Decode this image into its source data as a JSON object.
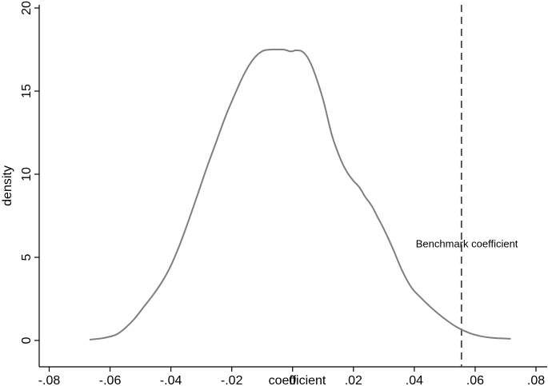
{
  "chart_data": {
    "type": "line",
    "title": "",
    "xlabel": "coefficient",
    "ylabel": "density",
    "xlim": [
      -0.08,
      0.08
    ],
    "ylim": [
      0,
      20
    ],
    "x_ticks": [
      -0.08,
      -0.06,
      -0.04,
      -0.02,
      0,
      0.02,
      0.04,
      0.06,
      0.08
    ],
    "x_tick_labels": [
      "-.08",
      "-.06",
      "-.04",
      "-.02",
      "0",
      ".02",
      ".04",
      ".06",
      ".08"
    ],
    "y_ticks": [
      0,
      5,
      10,
      15,
      20
    ],
    "y_tick_labels": [
      "0",
      "5",
      "10",
      "15",
      "20"
    ],
    "grid": false,
    "colors": {
      "line": "#7f7f7f",
      "reference_line": "#444444",
      "axis": "#000000"
    },
    "series": [
      {
        "x": [
          -0.0665,
          -0.062,
          -0.058,
          -0.055,
          -0.052,
          -0.049,
          -0.046,
          -0.043,
          -0.04,
          -0.037,
          -0.034,
          -0.031,
          -0.028,
          -0.025,
          -0.022,
          -0.019,
          -0.016,
          -0.013,
          -0.01,
          -0.007,
          -0.005,
          -0.003,
          -0.001,
          0.0,
          0.001,
          0.003,
          0.005,
          0.007,
          0.01,
          0.013,
          0.016,
          0.018,
          0.02,
          0.022,
          0.024,
          0.026,
          0.028,
          0.03,
          0.033,
          0.036,
          0.039,
          0.042,
          0.046,
          0.05,
          0.054,
          0.058,
          0.062,
          0.066,
          0.0715
        ],
        "y": [
          0.05,
          0.15,
          0.35,
          0.75,
          1.3,
          2.0,
          2.7,
          3.5,
          4.5,
          5.8,
          7.3,
          8.9,
          10.5,
          12.0,
          13.5,
          14.8,
          16.0,
          16.9,
          17.4,
          17.5,
          17.5,
          17.5,
          17.4,
          17.4,
          17.45,
          17.4,
          17.0,
          16.2,
          14.5,
          12.3,
          10.8,
          10.1,
          9.6,
          9.2,
          8.6,
          8.1,
          7.4,
          6.7,
          5.5,
          4.2,
          3.2,
          2.6,
          1.9,
          1.3,
          0.8,
          0.45,
          0.25,
          0.15,
          0.1
        ]
      }
    ],
    "reference_line": {
      "x": 0.0555,
      "style": "dashed"
    },
    "annotations": [
      {
        "text": "Benchmark coefficient",
        "x": 0.0405,
        "y": 5.8
      }
    ]
  }
}
